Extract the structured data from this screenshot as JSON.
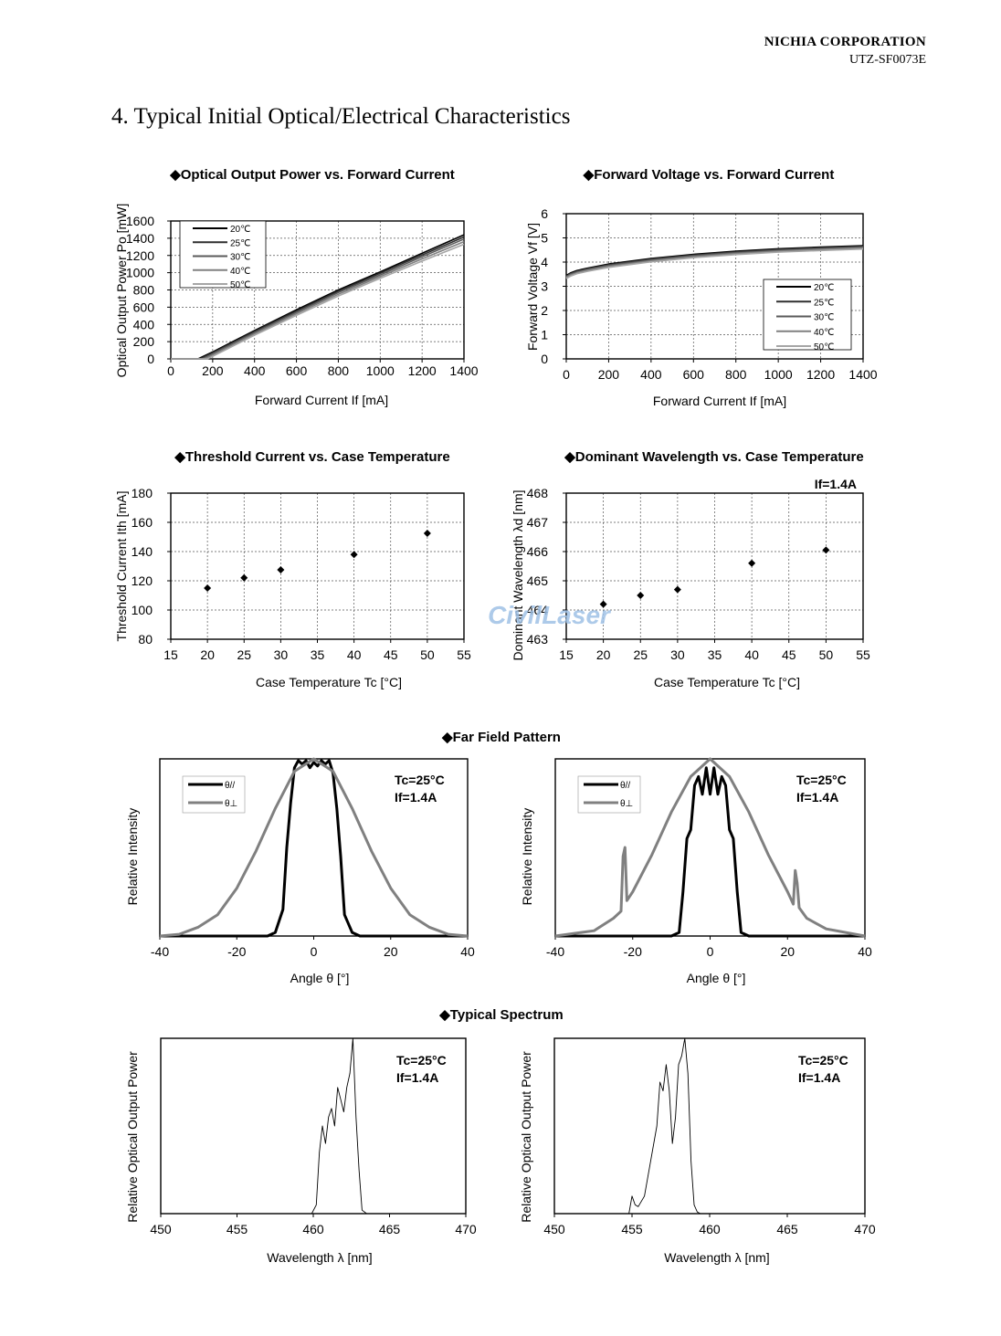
{
  "header": {
    "company": "NICHIA CORPORATION",
    "doc_id": "UTZ-SF0073E"
  },
  "section_title": "4. Typical Initial Optical/Electrical Characteristics",
  "watermark": "CivilLaser",
  "colors": {
    "c20": "#000000",
    "c25": "#2f2f2f",
    "c30": "#5a5a5a",
    "c40": "#808080",
    "c50": "#a6a6a6",
    "par": "#000000",
    "perp": "#808080"
  },
  "chart_data": [
    {
      "id": "pi",
      "type": "line",
      "title": "◆Optical Output Power vs. Forward Current",
      "xlabel": "Forward Current If [mA]",
      "ylabel": "Optical Output Power  Po [mW]",
      "xlim": [
        0,
        1400
      ],
      "ylim": [
        0,
        1600
      ],
      "xticks": [
        "0",
        "200",
        "400",
        "600",
        "800",
        "1000",
        "1200",
        "1400"
      ],
      "yticks": [
        "0",
        "200",
        "400",
        "600",
        "800",
        "1000",
        "1200",
        "1400",
        "1600"
      ],
      "grid": true,
      "legend_position": "top-left",
      "series": [
        {
          "name": "20℃",
          "color": "#000000",
          "x": [
            0,
            130,
            200,
            400,
            600,
            800,
            1000,
            1200,
            1400
          ],
          "y": [
            0,
            0,
            80,
            330,
            570,
            800,
            1010,
            1225,
            1440
          ]
        },
        {
          "name": "25℃",
          "color": "#2f2f2f",
          "x": [
            0,
            140,
            200,
            400,
            600,
            800,
            1000,
            1200,
            1400
          ],
          "y": [
            0,
            0,
            70,
            318,
            555,
            785,
            995,
            1205,
            1415
          ]
        },
        {
          "name": "30℃",
          "color": "#5a5a5a",
          "x": [
            0,
            150,
            200,
            400,
            600,
            800,
            1000,
            1200,
            1400
          ],
          "y": [
            0,
            0,
            60,
            305,
            540,
            770,
            975,
            1185,
            1390
          ]
        },
        {
          "name": "40℃",
          "color": "#808080",
          "x": [
            0,
            160,
            200,
            400,
            600,
            800,
            1000,
            1200,
            1400
          ],
          "y": [
            0,
            0,
            45,
            290,
            525,
            750,
            955,
            1160,
            1360
          ]
        },
        {
          "name": "50℃",
          "color": "#a6a6a6",
          "x": [
            0,
            175,
            200,
            400,
            600,
            800,
            1000,
            1200,
            1400
          ],
          "y": [
            0,
            0,
            30,
            275,
            505,
            730,
            935,
            1135,
            1330
          ]
        }
      ]
    },
    {
      "id": "iv",
      "type": "line",
      "title": "◆Forward Voltage vs. Forward Current",
      "xlabel": "Forward Current If [mA]",
      "ylabel": "Forward Voltage  Vf [V]",
      "xlim": [
        0,
        1400
      ],
      "ylim": [
        0,
        6
      ],
      "xticks": [
        "0",
        "200",
        "400",
        "600",
        "800",
        "1000",
        "1200",
        "1400"
      ],
      "yticks": [
        "0",
        "1",
        "2",
        "3",
        "4",
        "5",
        "6"
      ],
      "grid": true,
      "legend_position": "bottom-right",
      "series": [
        {
          "name": "20℃",
          "color": "#000000",
          "x": [
            0,
            20,
            50,
            100,
            200,
            400,
            600,
            800,
            1000,
            1200,
            1400
          ],
          "y": [
            3.45,
            3.55,
            3.65,
            3.75,
            3.92,
            4.15,
            4.32,
            4.45,
            4.55,
            4.62,
            4.68
          ]
        },
        {
          "name": "25℃",
          "color": "#2f2f2f",
          "x": [
            0,
            20,
            50,
            100,
            200,
            400,
            600,
            800,
            1000,
            1200,
            1400
          ],
          "y": [
            3.42,
            3.52,
            3.62,
            3.72,
            3.89,
            4.12,
            4.29,
            4.42,
            4.52,
            4.59,
            4.65
          ]
        },
        {
          "name": "30℃",
          "color": "#5a5a5a",
          "x": [
            0,
            20,
            50,
            100,
            200,
            400,
            600,
            800,
            1000,
            1200,
            1400
          ],
          "y": [
            3.4,
            3.5,
            3.6,
            3.7,
            3.86,
            4.09,
            4.26,
            4.39,
            4.49,
            4.56,
            4.62
          ]
        },
        {
          "name": "40℃",
          "color": "#808080",
          "x": [
            0,
            20,
            50,
            100,
            200,
            400,
            600,
            800,
            1000,
            1200,
            1400
          ],
          "y": [
            3.36,
            3.46,
            3.56,
            3.66,
            3.82,
            4.05,
            4.22,
            4.35,
            4.45,
            4.52,
            4.58
          ]
        },
        {
          "name": "50℃",
          "color": "#a6a6a6",
          "x": [
            0,
            20,
            50,
            100,
            200,
            400,
            600,
            800,
            1000,
            1200,
            1400
          ],
          "y": [
            3.32,
            3.42,
            3.52,
            3.62,
            3.78,
            4.01,
            4.18,
            4.31,
            4.41,
            4.48,
            4.54
          ]
        }
      ]
    },
    {
      "id": "ith",
      "type": "scatter",
      "title": "◆Threshold Current vs. Case Temperature",
      "xlabel": "Case Temperature  Tc [°C]",
      "ylabel": "Threshold Current  Ith [mA]",
      "xlim": [
        15,
        55
      ],
      "ylim": [
        80,
        180
      ],
      "xticks": [
        "15",
        "20",
        "25",
        "30",
        "35",
        "40",
        "45",
        "50",
        "55"
      ],
      "yticks": [
        "80",
        "100",
        "120",
        "140",
        "160",
        "180"
      ],
      "grid": true,
      "series": [
        {
          "x": [
            20,
            25,
            30,
            40,
            50
          ],
          "y": [
            115,
            122,
            127.5,
            138,
            152.5
          ]
        }
      ]
    },
    {
      "id": "wl",
      "type": "scatter",
      "title": "◆Dominant Wavelength vs. Case Temperature",
      "annotation": "If=1.4A",
      "xlabel": "Case Temperature  Tc [°C]",
      "ylabel": "Dominant Wavelength λd [nm]",
      "xlim": [
        15,
        55
      ],
      "ylim": [
        463,
        468
      ],
      "xticks": [
        "15",
        "20",
        "25",
        "30",
        "35",
        "40",
        "45",
        "50",
        "55"
      ],
      "yticks": [
        "463",
        "464",
        "465",
        "466",
        "467",
        "468"
      ],
      "grid": true,
      "series": [
        {
          "x": [
            20,
            25,
            30,
            40,
            50
          ],
          "y": [
            464.2,
            464.5,
            464.7,
            465.6,
            466.05
          ]
        }
      ]
    },
    {
      "id": "ffp1",
      "type": "line",
      "title": "◆Far Field Pattern",
      "xlabel": "Angle  θ [°]",
      "ylabel": "Relative Intensity",
      "xlim": [
        -40,
        40
      ],
      "ylim": [
        0,
        1
      ],
      "xticks": [
        "-40",
        "-20",
        "0",
        "20",
        "40"
      ],
      "conditions": [
        "Tc=25°C",
        "If=1.4A"
      ],
      "legend_position": "top-left",
      "series": [
        {
          "name": "θ//",
          "color": "#000000",
          "x": [
            -40,
            -12,
            -10,
            -8,
            -7,
            -6,
            -5,
            -4,
            -3,
            -2,
            -1,
            0,
            1,
            2,
            3,
            4,
            5,
            6,
            7,
            8,
            10,
            12,
            40
          ],
          "y": [
            0,
            0,
            0.02,
            0.15,
            0.5,
            0.75,
            0.95,
            0.99,
            0.97,
            0.99,
            0.95,
            0.98,
            0.96,
            0.99,
            0.97,
            0.99,
            0.92,
            0.72,
            0.45,
            0.12,
            0.02,
            0,
            0
          ]
        },
        {
          "name": "θ⊥",
          "color": "#808080",
          "x": [
            -40,
            -35,
            -30,
            -25,
            -20,
            -15,
            -10,
            -5,
            0,
            5,
            10,
            15,
            20,
            25,
            30,
            35,
            40
          ],
          "y": [
            0,
            0.01,
            0.05,
            0.12,
            0.27,
            0.48,
            0.72,
            0.93,
            1.0,
            0.93,
            0.72,
            0.48,
            0.27,
            0.12,
            0.05,
            0.01,
            0
          ]
        }
      ]
    },
    {
      "id": "ffp2",
      "type": "line",
      "xlabel": "Angle  θ [°]",
      "ylabel": "Relative Intensity",
      "xlim": [
        -40,
        40
      ],
      "ylim": [
        0,
        1
      ],
      "xticks": [
        "-40",
        "-20",
        "0",
        "20",
        "40"
      ],
      "conditions": [
        "Tc=25°C",
        "If=1.4A"
      ],
      "legend_position": "top-left",
      "series": [
        {
          "name": "θ//",
          "color": "#000000",
          "x": [
            -40,
            -10,
            -8,
            -7,
            -6,
            -5,
            -4,
            -3,
            -2,
            -1,
            0,
            1,
            2,
            3,
            4,
            5,
            6,
            7,
            8,
            10,
            40
          ],
          "y": [
            0,
            0,
            0.02,
            0.25,
            0.55,
            0.6,
            0.85,
            0.9,
            0.8,
            0.95,
            0.8,
            0.95,
            0.8,
            0.9,
            0.85,
            0.6,
            0.55,
            0.25,
            0.02,
            0,
            0
          ]
        },
        {
          "name": "θ⊥",
          "color": "#808080",
          "x": [
            -40,
            -30,
            -25,
            -23,
            -22.5,
            -22,
            -21.5,
            -20,
            -15,
            -10,
            -5,
            0,
            5,
            10,
            15,
            20,
            21.5,
            22,
            22.5,
            23,
            25,
            30,
            40
          ],
          "y": [
            0,
            0.03,
            0.1,
            0.14,
            0.45,
            0.5,
            0.2,
            0.25,
            0.46,
            0.7,
            0.9,
            1.0,
            0.9,
            0.7,
            0.46,
            0.25,
            0.18,
            0.37,
            0.3,
            0.16,
            0.1,
            0.04,
            0
          ]
        }
      ]
    },
    {
      "id": "sp1",
      "type": "line",
      "title": "◆Typical Spectrum",
      "xlabel": "Wavelength λ [nm]",
      "ylabel": "Relative Optical Output Power",
      "xlim": [
        450,
        470
      ],
      "ylim": [
        0,
        1
      ],
      "xticks": [
        "450",
        "455",
        "460",
        "465",
        "470"
      ],
      "conditions": [
        "Tc=25°C",
        "If=1.4A"
      ],
      "series": [
        {
          "x": [
            450,
            459.9,
            460.2,
            460.4,
            460.6,
            460.8,
            461.0,
            461.2,
            461.4,
            461.6,
            461.8,
            462.0,
            462.2,
            462.4,
            462.6,
            462.8,
            463.0,
            463.2,
            463.5,
            470
          ],
          "y": [
            0,
            0,
            0.05,
            0.35,
            0.5,
            0.4,
            0.55,
            0.6,
            0.5,
            0.72,
            0.65,
            0.58,
            0.72,
            0.8,
            1.0,
            0.55,
            0.25,
            0.02,
            0,
            0
          ]
        }
      ]
    },
    {
      "id": "sp2",
      "type": "line",
      "xlabel": "Wavelength λ [nm]",
      "ylabel": "Relative Optical Output Power",
      "xlim": [
        450,
        470
      ],
      "ylim": [
        0,
        1
      ],
      "xticks": [
        "450",
        "455",
        "460",
        "465",
        "470"
      ],
      "conditions": [
        "Tc=25°C",
        "If=1.4A"
      ],
      "series": [
        {
          "x": [
            450,
            454.8,
            455.0,
            455.2,
            455.4,
            455.8,
            456.2,
            456.6,
            456.8,
            457.0,
            457.2,
            457.4,
            457.6,
            457.8,
            458.0,
            458.2,
            458.4,
            458.6,
            458.8,
            459.0,
            459.2,
            459.4,
            470
          ],
          "y": [
            0,
            0,
            0.1,
            0.05,
            0.04,
            0.1,
            0.3,
            0.5,
            0.75,
            0.7,
            0.85,
            0.7,
            0.4,
            0.55,
            0.85,
            0.9,
            1.0,
            0.8,
            0.3,
            0.05,
            0.01,
            0,
            0
          ]
        }
      ]
    }
  ]
}
